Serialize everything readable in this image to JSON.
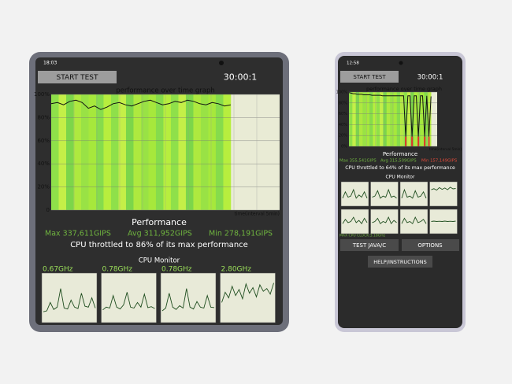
{
  "left_phone": {
    "status_time": "18:03",
    "start_button": "START TEST",
    "timer": "30:00:1",
    "graph": {
      "title": "performance over time graph",
      "yticks": [
        {
          "value": 100,
          "label": "100%"
        },
        {
          "value": 80,
          "label": "80%"
        },
        {
          "value": 60,
          "label": "60%"
        },
        {
          "value": 40,
          "label": "40%"
        },
        {
          "value": 20,
          "label": "20%"
        },
        0
      ],
      "x_label": "time(interval 5min)",
      "performance": [
        92,
        93,
        91,
        94,
        95,
        93,
        88,
        90,
        87,
        89,
        92,
        93,
        91,
        90,
        92,
        94,
        95,
        93,
        91,
        92,
        94,
        93,
        95,
        94,
        92,
        91,
        93,
        92,
        90,
        91
      ]
    },
    "performance_title": "Performance",
    "max": "Max 337,611GIPS",
    "avg": "Avg 311,952GIPS",
    "min": "Min 278,191GIPS",
    "throttle": "CPU throttled to 86% of its max performance",
    "cpu_monitor_title": "CPU Monitor",
    "cores": [
      {
        "freq": "0.67GHz",
        "trace": [
          20,
          22,
          40,
          25,
          30,
          70,
          28,
          26,
          45,
          30,
          27,
          60,
          32,
          30,
          50,
          28
        ]
      },
      {
        "freq": "0.78GHz",
        "trace": [
          24,
          30,
          28,
          55,
          30,
          26,
          35,
          62,
          30,
          28,
          40,
          30,
          58,
          29,
          31,
          27
        ]
      },
      {
        "freq": "0.78GHz",
        "trace": [
          22,
          28,
          60,
          30,
          25,
          33,
          28,
          70,
          30,
          26,
          42,
          30,
          28,
          55,
          30,
          29
        ]
      },
      {
        "freq": "2.80GHz",
        "trace": [
          40,
          62,
          50,
          75,
          55,
          68,
          48,
          80,
          60,
          72,
          52,
          78,
          64,
          70,
          58,
          82
        ]
      }
    ]
  },
  "right_phone": {
    "status_time": "12:58",
    "start_button": "START TEST",
    "timer": "30:00:1",
    "graph": {
      "title": "performance over time graph",
      "yticks": [
        {
          "value": 100,
          "label": "100%"
        },
        {
          "value": 80,
          "label": "80%"
        },
        {
          "value": 60,
          "label": "60%"
        },
        {
          "value": 40,
          "label": "40%"
        },
        {
          "value": 20,
          "label": "20%"
        },
        {
          "value": 0,
          "label": "0%"
        }
      ],
      "x_label": "time(interval 5min)",
      "performance": [
        99,
        98,
        97,
        97,
        96,
        96,
        96,
        95,
        95,
        95,
        95,
        94,
        94,
        94,
        94,
        94,
        93,
        93,
        93,
        93,
        93,
        93,
        93,
        93,
        93,
        93,
        93,
        18,
        93,
        93,
        18,
        93,
        93,
        18,
        93,
        93,
        18,
        93,
        18,
        92
      ]
    },
    "performance_title": "Performance",
    "max": "Max 355,541GIPS",
    "avg": "Avg 315,509GIPS",
    "min": "Min 157,149GIPS",
    "throttle": "CPU throttled to 64% of its max performance",
    "cpu_monitor_title": "CPU Monitor",
    "cores": [
      {
        "trace": [
          30,
          60,
          35,
          40,
          70,
          30,
          45,
          35,
          60,
          30
        ]
      },
      {
        "trace": [
          35,
          40,
          65,
          30,
          40,
          35,
          70,
          35,
          40,
          30
        ]
      },
      {
        "trace": [
          30,
          70,
          35,
          40,
          30,
          65,
          35,
          40,
          60,
          30
        ]
      },
      {
        "trace": [
          70,
          75,
          68,
          80,
          72,
          78,
          70,
          82,
          74,
          76
        ]
      },
      {
        "trace": [
          40,
          60,
          45,
          50,
          70,
          45,
          55,
          40,
          65,
          45
        ]
      },
      {
        "trace": [
          45,
          50,
          65,
          40,
          50,
          45,
          70,
          40,
          55,
          45
        ]
      },
      {
        "trace": [
          40,
          65,
          45,
          50,
          40,
          70,
          45,
          50,
          60,
          40
        ]
      },
      {
        "trace": [
          50,
          52,
          50,
          51,
          50,
          52,
          50,
          51,
          50,
          52
        ]
      }
    ],
    "max_clock": "MAX CPU CLOCK:3.18GHz",
    "test_button": "TEST JAVA/C",
    "options_button": "OPTIONS",
    "help_button": "HELP/INSTRUCTIONS"
  }
}
